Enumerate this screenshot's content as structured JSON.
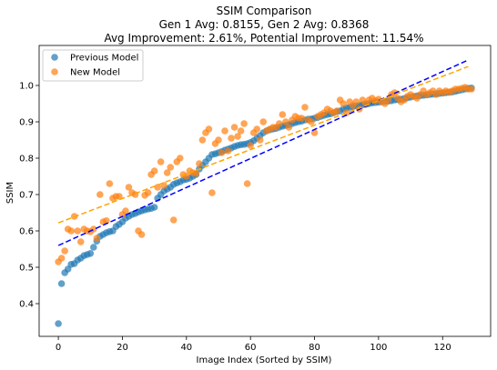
{
  "chart_data": {
    "type": "scatter",
    "title_lines": [
      "SSIM Comparison",
      "Gen 1 Avg: 0.8155, Gen 2 Avg: 0.8368",
      "Avg Improvement: 2.61%, Potential Improvement: 11.54%"
    ],
    "xlabel": "Image Index (Sorted by SSIM)",
    "ylabel": "SSIM",
    "xlim": [
      -6,
      135
    ],
    "ylim": [
      0.31,
      1.11
    ],
    "xticks": [
      0,
      20,
      40,
      60,
      80,
      100,
      120
    ],
    "yticks": [
      0.4,
      0.5,
      0.6,
      0.7,
      0.8,
      0.9,
      1.0
    ],
    "grid": false,
    "legend_position": "top-left",
    "series": [
      {
        "name": "Previous Model",
        "color": "#1f77b4",
        "y": [
          0.345,
          0.455,
          0.485,
          0.495,
          0.508,
          0.51,
          0.52,
          0.525,
          0.532,
          0.535,
          0.538,
          0.555,
          0.572,
          0.585,
          0.59,
          0.595,
          0.598,
          0.6,
          0.612,
          0.618,
          0.625,
          0.635,
          0.64,
          0.645,
          0.648,
          0.652,
          0.655,
          0.658,
          0.66,
          0.662,
          0.665,
          0.69,
          0.7,
          0.71,
          0.715,
          0.72,
          0.728,
          0.732,
          0.735,
          0.74,
          0.742,
          0.745,
          0.75,
          0.755,
          0.77,
          0.78,
          0.79,
          0.8,
          0.81,
          0.812,
          0.815,
          0.818,
          0.822,
          0.825,
          0.828,
          0.832,
          0.835,
          0.837,
          0.838,
          0.84,
          0.843,
          0.848,
          0.855,
          0.862,
          0.87,
          0.875,
          0.878,
          0.88,
          0.882,
          0.885,
          0.888,
          0.89,
          0.892,
          0.895,
          0.898,
          0.9,
          0.902,
          0.905,
          0.907,
          0.908,
          0.91,
          0.912,
          0.915,
          0.918,
          0.92,
          0.922,
          0.925,
          0.928,
          0.93,
          0.935,
          0.938,
          0.94,
          0.942,
          0.944,
          0.945,
          0.947,
          0.948,
          0.95,
          0.952,
          0.953,
          0.954,
          0.955,
          0.956,
          0.957,
          0.958,
          0.96,
          0.961,
          0.962,
          0.964,
          0.966,
          0.968,
          0.97,
          0.971,
          0.972,
          0.973,
          0.974,
          0.975,
          0.976,
          0.977,
          0.978,
          0.979,
          0.98,
          0.981,
          0.982,
          0.984,
          0.986,
          0.988,
          0.99,
          0.992,
          0.993
        ]
      },
      {
        "name": "New Model",
        "color": "#ff7f0e",
        "points": [
          [
            0,
            0.515
          ],
          [
            1,
            0.525
          ],
          [
            2,
            0.545
          ],
          [
            3,
            0.605
          ],
          [
            4,
            0.6
          ],
          [
            5,
            0.64
          ],
          [
            6,
            0.6
          ],
          [
            7,
            0.57
          ],
          [
            8,
            0.605
          ],
          [
            9,
            0.6
          ],
          [
            10,
            0.598
          ],
          [
            11,
            0.605
          ],
          [
            12,
            0.58
          ],
          [
            13,
            0.7
          ],
          [
            14,
            0.625
          ],
          [
            15,
            0.628
          ],
          [
            16,
            0.73
          ],
          [
            17,
            0.69
          ],
          [
            18,
            0.695
          ],
          [
            19,
            0.695
          ],
          [
            20,
            0.645
          ],
          [
            21,
            0.655
          ],
          [
            22,
            0.72
          ],
          [
            23,
            0.705
          ],
          [
            24,
            0.7
          ],
          [
            25,
            0.6
          ],
          [
            26,
            0.59
          ],
          [
            27,
            0.698
          ],
          [
            28,
            0.705
          ],
          [
            29,
            0.755
          ],
          [
            30,
            0.765
          ],
          [
            31,
            0.72
          ],
          [
            32,
            0.79
          ],
          [
            33,
            0.725
          ],
          [
            34,
            0.76
          ],
          [
            35,
            0.775
          ],
          [
            36,
            0.63
          ],
          [
            37,
            0.79
          ],
          [
            38,
            0.8
          ],
          [
            39,
            0.755
          ],
          [
            40,
            0.75
          ],
          [
            41,
            0.765
          ],
          [
            42,
            0.76
          ],
          [
            43,
            0.758
          ],
          [
            44,
            0.785
          ],
          [
            45,
            0.85
          ],
          [
            46,
            0.87
          ],
          [
            47,
            0.88
          ],
          [
            48,
            0.705
          ],
          [
            49,
            0.84
          ],
          [
            50,
            0.85
          ],
          [
            51,
            0.815
          ],
          [
            52,
            0.875
          ],
          [
            53,
            0.82
          ],
          [
            54,
            0.855
          ],
          [
            55,
            0.885
          ],
          [
            56,
            0.86
          ],
          [
            57,
            0.875
          ],
          [
            58,
            0.895
          ],
          [
            59,
            0.73
          ],
          [
            60,
            0.835
          ],
          [
            61,
            0.87
          ],
          [
            62,
            0.88
          ],
          [
            63,
            0.85
          ],
          [
            64,
            0.9
          ],
          [
            65,
            0.875
          ],
          [
            66,
            0.88
          ],
          [
            67,
            0.885
          ],
          [
            68,
            0.885
          ],
          [
            69,
            0.895
          ],
          [
            70,
            0.92
          ],
          [
            71,
            0.9
          ],
          [
            72,
            0.885
          ],
          [
            73,
            0.905
          ],
          [
            74,
            0.915
          ],
          [
            75,
            0.91
          ],
          [
            76,
            0.91
          ],
          [
            77,
            0.94
          ],
          [
            78,
            0.905
          ],
          [
            79,
            0.9
          ],
          [
            80,
            0.87
          ],
          [
            81,
            0.915
          ],
          [
            82,
            0.92
          ],
          [
            83,
            0.925
          ],
          [
            84,
            0.935
          ],
          [
            85,
            0.93
          ],
          [
            86,
            0.925
          ],
          [
            87,
            0.93
          ],
          [
            88,
            0.96
          ],
          [
            89,
            0.95
          ],
          [
            90,
            0.925
          ],
          [
            91,
            0.955
          ],
          [
            92,
            0.945
          ],
          [
            93,
            0.955
          ],
          [
            94,
            0.935
          ],
          [
            95,
            0.96
          ],
          [
            96,
            0.95
          ],
          [
            97,
            0.96
          ],
          [
            98,
            0.965
          ],
          [
            99,
            0.958
          ],
          [
            100,
            0.962
          ],
          [
            101,
            0.955
          ],
          [
            102,
            0.95
          ],
          [
            103,
            0.96
          ],
          [
            104,
            0.975
          ],
          [
            105,
            0.98
          ],
          [
            106,
            0.965
          ],
          [
            107,
            0.955
          ],
          [
            108,
            0.96
          ],
          [
            109,
            0.97
          ],
          [
            110,
            0.975
          ],
          [
            111,
            0.97
          ],
          [
            112,
            0.965
          ],
          [
            113,
            0.975
          ],
          [
            114,
            0.985
          ],
          [
            115,
            0.975
          ],
          [
            116,
            0.98
          ],
          [
            117,
            0.985
          ],
          [
            118,
            0.975
          ],
          [
            119,
            0.985
          ],
          [
            120,
            0.98
          ],
          [
            121,
            0.985
          ],
          [
            122,
            0.982
          ],
          [
            123,
            0.985
          ],
          [
            124,
            0.99
          ],
          [
            125,
            0.99
          ],
          [
            126,
            0.992
          ],
          [
            127,
            0.995
          ],
          [
            128,
            0.99
          ],
          [
            129,
            0.99
          ]
        ]
      }
    ],
    "trendlines": [
      {
        "color": "#0000ff",
        "style": "dashed",
        "from": [
          0,
          0.56
        ],
        "to": [
          128,
          1.07
        ]
      },
      {
        "color": "#ffa500",
        "style": "dashed",
        "from": [
          0,
          0.622
        ],
        "to": [
          128,
          1.052
        ]
      }
    ]
  }
}
